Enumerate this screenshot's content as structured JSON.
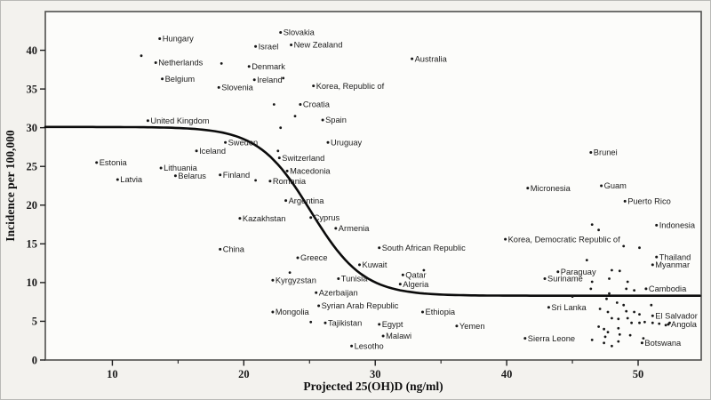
{
  "figure": {
    "bg_color": "#f3f2ee",
    "plot_bg": "#fcfcfa",
    "frame_color": "#4f4f4d",
    "axis_color": "#1f1f1f",
    "point_color": "#171717",
    "curve_color": "#0b0b0b",
    "label_color": "#1c1c1c"
  },
  "chart_data": {
    "type": "scatter",
    "title": "",
    "xlabel": "Projected 25(OH)D (ng/ml)",
    "ylabel": "Incidence per 100,000",
    "xlim": [
      4.9,
      54.8
    ],
    "ylim": [
      0,
      45
    ],
    "x_major_ticks": [
      10,
      20,
      30,
      40,
      50
    ],
    "x_minor_ticks": [
      15,
      25,
      35,
      45
    ],
    "y_ticks": [
      0,
      5,
      10,
      15,
      20,
      25,
      30,
      35,
      40
    ],
    "grid": false,
    "legend": false,
    "curve": {
      "type": "logistic-decreasing",
      "upper": 30.1,
      "lower": 8.3,
      "midpoint": 25.1,
      "steepness": 2.0,
      "x_start": 4.9,
      "x_end": 54.8
    },
    "points": [
      {
        "label": "Slovakia",
        "x": 22.8,
        "y": 42.3
      },
      {
        "label": "Hungary",
        "x": 13.6,
        "y": 41.5
      },
      {
        "label": "Israel",
        "x": 20.9,
        "y": 40.5
      },
      {
        "label": "New Zealand",
        "x": 23.6,
        "y": 40.7
      },
      {
        "label": "Netherlands",
        "x": 13.3,
        "y": 38.4
      },
      {
        "label": "Denmark",
        "x": 20.4,
        "y": 37.9
      },
      {
        "label": "Australia",
        "x": 32.8,
        "y": 38.9
      },
      {
        "label": "Belgium",
        "x": 13.8,
        "y": 36.3
      },
      {
        "label": "Ireland",
        "x": 20.8,
        "y": 36.2
      },
      {
        "label": "Slovenia",
        "x": 18.1,
        "y": 35.2
      },
      {
        "label": "Korea, Republic of",
        "x": 25.3,
        "y": 35.4
      },
      {
        "label": "Croatia",
        "x": 24.3,
        "y": 33.0
      },
      {
        "label": "Spain",
        "x": 26.0,
        "y": 31.0
      },
      {
        "label": "United Kingdom",
        "x": 12.7,
        "y": 30.9
      },
      {
        "label": "Sweden",
        "x": 18.6,
        "y": 28.1
      },
      {
        "label": "Uruguay",
        "x": 26.4,
        "y": 28.1
      },
      {
        "label": "Iceland",
        "x": 16.4,
        "y": 27.0
      },
      {
        "label": "Switzerland",
        "x": 22.7,
        "y": 26.1
      },
      {
        "label": "Estonia",
        "x": 8.8,
        "y": 25.5
      },
      {
        "label": "Lithuania",
        "x": 13.7,
        "y": 24.8
      },
      {
        "label": "Macedonia",
        "x": 23.3,
        "y": 24.4
      },
      {
        "label": "Finland",
        "x": 18.2,
        "y": 23.9
      },
      {
        "label": "Belarus",
        "x": 14.8,
        "y": 23.8
      },
      {
        "label": "Latvia",
        "x": 10.4,
        "y": 23.3
      },
      {
        "label": "Romania",
        "x": 22.0,
        "y": 23.1
      },
      {
        "label": "Brunei",
        "x": 46.4,
        "y": 26.8
      },
      {
        "label": "Micronesia",
        "x": 41.6,
        "y": 22.2
      },
      {
        "label": "Guam",
        "x": 47.2,
        "y": 22.5
      },
      {
        "label": "Puerto Rico",
        "x": 49.0,
        "y": 20.5
      },
      {
        "label": "Indonesia",
        "x": 51.4,
        "y": 17.4
      },
      {
        "label": "Argentina",
        "x": 23.2,
        "y": 20.6
      },
      {
        "label": "Kazakhstan",
        "x": 19.7,
        "y": 18.3
      },
      {
        "label": "Cyprus",
        "x": 25.1,
        "y": 18.4
      },
      {
        "label": "Armenia",
        "x": 27.0,
        "y": 17.0
      },
      {
        "label": "Korea, Democratic Republic of",
        "x": 39.9,
        "y": 15.6
      },
      {
        "label": "South African Republic",
        "x": 30.3,
        "y": 14.5
      },
      {
        "label": "China",
        "x": 18.2,
        "y": 14.3
      },
      {
        "label": "Greece",
        "x": 24.1,
        "y": 13.2
      },
      {
        "label": "Kuwait",
        "x": 28.8,
        "y": 12.3
      },
      {
        "label": "Thailand",
        "x": 51.4,
        "y": 13.3
      },
      {
        "label": "Myanmar",
        "x": 51.1,
        "y": 12.3
      },
      {
        "label": "Paraguay",
        "x": 43.9,
        "y": 11.4
      },
      {
        "label": "Suriname",
        "x": 42.9,
        "y": 10.5
      },
      {
        "label": "Tunisia",
        "x": 27.2,
        "y": 10.5
      },
      {
        "label": "Qatar",
        "x": 32.1,
        "y": 11.0
      },
      {
        "label": "Algeria",
        "x": 31.9,
        "y": 9.8
      },
      {
        "label": "Cambodia",
        "x": 50.6,
        "y": 9.2
      },
      {
        "label": "Kyrgyzstan",
        "x": 22.2,
        "y": 10.3
      },
      {
        "label": "Azerbaijan",
        "x": 25.5,
        "y": 8.7
      },
      {
        "label": "Sri Lanka",
        "x": 43.2,
        "y": 6.8
      },
      {
        "label": "Mongolia",
        "x": 22.2,
        "y": 6.2
      },
      {
        "label": "Syrian Arab Republic",
        "x": 25.7,
        "y": 7.0
      },
      {
        "label": "Ethiopia",
        "x": 33.6,
        "y": 6.2
      },
      {
        "label": "El Salvador",
        "x": 51.1,
        "y": 5.7
      },
      {
        "label": "Tajikistan",
        "x": 26.2,
        "y": 4.8
      },
      {
        "label": "Egypt",
        "x": 30.3,
        "y": 4.6
      },
      {
        "label": "Yemen",
        "x": 36.2,
        "y": 4.4
      },
      {
        "label": "Angola",
        "x": 52.3,
        "y": 4.6
      },
      {
        "label": "Malawi",
        "x": 30.6,
        "y": 3.1
      },
      {
        "label": "Sierra Leone",
        "x": 41.4,
        "y": 2.8
      },
      {
        "label": "Lesotho",
        "x": 28.2,
        "y": 1.8
      },
      {
        "label": "Botswana",
        "x": 50.3,
        "y": 2.2
      }
    ],
    "unlabeled_points": [
      [
        12.2,
        39.3
      ],
      [
        18.3,
        38.3
      ],
      [
        23.0,
        36.4
      ],
      [
        22.3,
        33.0
      ],
      [
        23.9,
        31.5
      ],
      [
        22.8,
        30.0
      ],
      [
        22.6,
        27.0
      ],
      [
        20.9,
        23.2
      ],
      [
        23.5,
        11.3
      ],
      [
        33.7,
        11.6
      ],
      [
        25.1,
        4.9
      ],
      [
        46.5,
        17.5
      ],
      [
        47.0,
        16.8
      ],
      [
        48.9,
        14.7
      ],
      [
        50.1,
        14.5
      ],
      [
        46.1,
        12.9
      ],
      [
        46.5,
        10.1
      ],
      [
        48.0,
        11.6
      ],
      [
        48.6,
        11.5
      ],
      [
        47.8,
        10.5
      ],
      [
        49.2,
        10.1
      ],
      [
        46.4,
        9.2
      ],
      [
        49.1,
        9.2
      ],
      [
        49.7,
        9.0
      ],
      [
        47.8,
        8.6
      ],
      [
        45.0,
        8.2
      ],
      [
        47.6,
        7.9
      ],
      [
        48.4,
        7.4
      ],
      [
        48.9,
        7.1
      ],
      [
        51.0,
        7.1
      ],
      [
        47.1,
        6.6
      ],
      [
        47.7,
        6.2
      ],
      [
        49.1,
        6.3
      ],
      [
        49.7,
        6.2
      ],
      [
        50.1,
        5.9
      ],
      [
        48.0,
        5.4
      ],
      [
        48.5,
        5.3
      ],
      [
        49.2,
        5.4
      ],
      [
        49.5,
        4.8
      ],
      [
        50.1,
        4.8
      ],
      [
        50.5,
        4.9
      ],
      [
        51.1,
        4.8
      ],
      [
        51.6,
        4.7
      ],
      [
        52.1,
        4.5
      ],
      [
        52.4,
        4.8
      ],
      [
        47.0,
        4.3
      ],
      [
        47.4,
        4.0
      ],
      [
        48.5,
        4.1
      ],
      [
        47.7,
        3.6
      ],
      [
        48.6,
        3.3
      ],
      [
        49.4,
        3.2
      ],
      [
        46.5,
        2.6
      ],
      [
        47.5,
        3.0
      ],
      [
        48.5,
        2.4
      ],
      [
        48.0,
        1.8
      ],
      [
        47.4,
        2.2
      ],
      [
        50.4,
        2.8
      ]
    ]
  }
}
